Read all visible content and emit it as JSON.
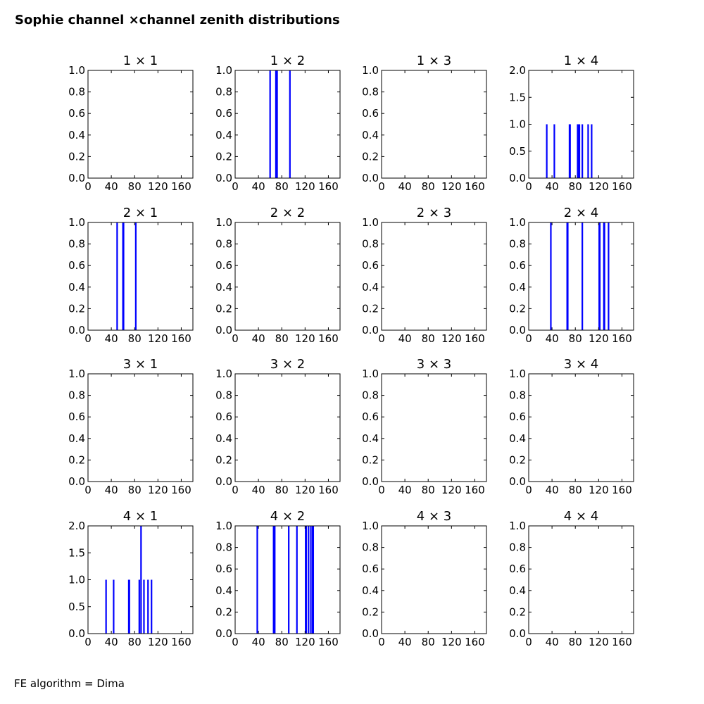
{
  "figure": {
    "suptitle": "Sophie channel ×channel zenith distributions",
    "footer": "FE algorithm = Dima"
  },
  "colors": {
    "line": "#0000ff",
    "axes": "#000000",
    "background": "#ffffff"
  },
  "chart_data": [
    {
      "type": "line",
      "title": "1 × 1",
      "xlim": [
        0,
        180
      ],
      "ylim": [
        0,
        1
      ],
      "xticks": [
        "0",
        "40",
        "80",
        "120",
        "160"
      ],
      "yticks": [
        "0.0",
        "0.2",
        "0.4",
        "0.6",
        "0.8",
        "1.0"
      ],
      "series": [
        {
          "spikes": []
        }
      ]
    },
    {
      "type": "line",
      "title": "1 × 2",
      "xlim": [
        0,
        180
      ],
      "ylim": [
        0,
        1
      ],
      "xticks": [
        "0",
        "40",
        "80",
        "120",
        "160"
      ],
      "yticks": [
        "0.0",
        "0.2",
        "0.4",
        "0.6",
        "0.8",
        "1.0"
      ],
      "series": [
        {
          "spikes": [
            [
              60,
              1
            ],
            [
              70,
              1
            ],
            [
              71,
              1
            ],
            [
              72,
              1
            ],
            [
              94,
              1
            ]
          ]
        }
      ]
    },
    {
      "type": "line",
      "title": "1 × 3",
      "xlim": [
        0,
        180
      ],
      "ylim": [
        0,
        1
      ],
      "xticks": [
        "0",
        "40",
        "80",
        "120",
        "160"
      ],
      "yticks": [
        "0.0",
        "0.2",
        "0.4",
        "0.6",
        "0.8",
        "1.0"
      ],
      "series": [
        {
          "spikes": []
        }
      ]
    },
    {
      "type": "line",
      "title": "1 × 4",
      "xlim": [
        0,
        180
      ],
      "ylim": [
        0,
        2
      ],
      "xticks": [
        "0",
        "40",
        "80",
        "120",
        "160"
      ],
      "yticks": [
        "0.0",
        "0.5",
        "1.0",
        "1.5",
        "2.0"
      ],
      "series": [
        {
          "spikes": [
            [
              31,
              1
            ],
            [
              44,
              1
            ],
            [
              70,
              1
            ],
            [
              71,
              1
            ],
            [
              84,
              1
            ],
            [
              86,
              1
            ],
            [
              87,
              1
            ],
            [
              92,
              1
            ],
            [
              102,
              1
            ],
            [
              108,
              1
            ]
          ]
        }
      ]
    },
    {
      "type": "line",
      "title": "2 × 1",
      "xlim": [
        0,
        180
      ],
      "ylim": [
        0,
        1
      ],
      "xticks": [
        "0",
        "40",
        "80",
        "120",
        "160"
      ],
      "yticks": [
        "0.0",
        "0.2",
        "0.4",
        "0.6",
        "0.8",
        "1.0"
      ],
      "series": [
        {
          "spikes": [
            [
              50,
              1
            ],
            [
              60,
              1
            ],
            [
              61,
              1
            ],
            [
              82,
              1
            ]
          ]
        }
      ]
    },
    {
      "type": "line",
      "title": "2 × 2",
      "xlim": [
        0,
        180
      ],
      "ylim": [
        0,
        1
      ],
      "xticks": [
        "0",
        "40",
        "80",
        "120",
        "160"
      ],
      "yticks": [
        "0.0",
        "0.2",
        "0.4",
        "0.6",
        "0.8",
        "1.0"
      ],
      "series": [
        {
          "spikes": []
        }
      ]
    },
    {
      "type": "line",
      "title": "2 × 3",
      "xlim": [
        0,
        180
      ],
      "ylim": [
        0,
        1
      ],
      "xticks": [
        "0",
        "40",
        "80",
        "120",
        "160"
      ],
      "yticks": [
        "0.0",
        "0.2",
        "0.4",
        "0.6",
        "0.8",
        "1.0"
      ],
      "series": [
        {
          "spikes": []
        }
      ]
    },
    {
      "type": "line",
      "title": "2 × 4",
      "xlim": [
        0,
        180
      ],
      "ylim": [
        0,
        1
      ],
      "xticks": [
        "0",
        "40",
        "80",
        "120",
        "160"
      ],
      "yticks": [
        "0.0",
        "0.2",
        "0.4",
        "0.6",
        "0.8",
        "1.0"
      ],
      "series": [
        {
          "spikes": [
            [
              38,
              1
            ],
            [
              66,
              1
            ],
            [
              67,
              1
            ],
            [
              92,
              1
            ],
            [
              121,
              1
            ],
            [
              122,
              1
            ],
            [
              129,
              1
            ],
            [
              130,
              1
            ],
            [
              137,
              1
            ]
          ]
        }
      ]
    },
    {
      "type": "line",
      "title": "3 × 1",
      "xlim": [
        0,
        180
      ],
      "ylim": [
        0,
        1
      ],
      "xticks": [
        "0",
        "40",
        "80",
        "120",
        "160"
      ],
      "yticks": [
        "0.0",
        "0.2",
        "0.4",
        "0.6",
        "0.8",
        "1.0"
      ],
      "series": [
        {
          "spikes": []
        }
      ]
    },
    {
      "type": "line",
      "title": "3 × 2",
      "xlim": [
        0,
        180
      ],
      "ylim": [
        0,
        1
      ],
      "xticks": [
        "0",
        "40",
        "80",
        "120",
        "160"
      ],
      "yticks": [
        "0.0",
        "0.2",
        "0.4",
        "0.6",
        "0.8",
        "1.0"
      ],
      "series": [
        {
          "spikes": []
        }
      ]
    },
    {
      "type": "line",
      "title": "3 × 3",
      "xlim": [
        0,
        180
      ],
      "ylim": [
        0,
        1
      ],
      "xticks": [
        "0",
        "40",
        "80",
        "120",
        "160"
      ],
      "yticks": [
        "0.0",
        "0.2",
        "0.4",
        "0.6",
        "0.8",
        "1.0"
      ],
      "series": [
        {
          "spikes": []
        }
      ]
    },
    {
      "type": "line",
      "title": "3 × 4",
      "xlim": [
        0,
        180
      ],
      "ylim": [
        0,
        1
      ],
      "xticks": [
        "0",
        "40",
        "80",
        "120",
        "160"
      ],
      "yticks": [
        "0.0",
        "0.2",
        "0.4",
        "0.6",
        "0.8",
        "1.0"
      ],
      "series": [
        {
          "spikes": []
        }
      ]
    },
    {
      "type": "line",
      "title": "4 × 1",
      "xlim": [
        0,
        180
      ],
      "ylim": [
        0,
        2
      ],
      "xticks": [
        "0",
        "40",
        "80",
        "120",
        "160"
      ],
      "yticks": [
        "0.0",
        "0.5",
        "1.0",
        "1.5",
        "2.0"
      ],
      "series": [
        {
          "spikes": [
            [
              31,
              1
            ],
            [
              44,
              1
            ],
            [
              70,
              1
            ],
            [
              71,
              1
            ],
            [
              88,
              1
            ],
            [
              91,
              2
            ],
            [
              96,
              1
            ],
            [
              103,
              1
            ],
            [
              109,
              1
            ]
          ]
        }
      ]
    },
    {
      "type": "line",
      "title": "4 × 2",
      "xlim": [
        0,
        180
      ],
      "ylim": [
        0,
        1
      ],
      "xticks": [
        "0",
        "40",
        "80",
        "120",
        "160"
      ],
      "yticks": [
        "0.0",
        "0.2",
        "0.4",
        "0.6",
        "0.8",
        "1.0"
      ],
      "series": [
        {
          "spikes": [
            [
              38,
              1
            ],
            [
              66,
              1
            ],
            [
              67,
              1
            ],
            [
              68,
              1
            ],
            [
              92,
              1
            ],
            [
              106,
              1
            ],
            [
              121,
              1
            ],
            [
              122,
              1
            ],
            [
              126,
              1
            ],
            [
              130,
              1
            ],
            [
              133,
              1
            ],
            [
              134,
              1
            ]
          ]
        }
      ]
    },
    {
      "type": "line",
      "title": "4 × 3",
      "xlim": [
        0,
        180
      ],
      "ylim": [
        0,
        1
      ],
      "xticks": [
        "0",
        "40",
        "80",
        "120",
        "160"
      ],
      "yticks": [
        "0.0",
        "0.2",
        "0.4",
        "0.6",
        "0.8",
        "1.0"
      ],
      "series": [
        {
          "spikes": []
        }
      ]
    },
    {
      "type": "line",
      "title": "4 × 4",
      "xlim": [
        0,
        180
      ],
      "ylim": [
        0,
        1
      ],
      "xticks": [
        "0",
        "40",
        "80",
        "120",
        "160"
      ],
      "yticks": [
        "0.0",
        "0.2",
        "0.4",
        "0.6",
        "0.8",
        "1.0"
      ],
      "series": [
        {
          "spikes": []
        }
      ]
    }
  ]
}
